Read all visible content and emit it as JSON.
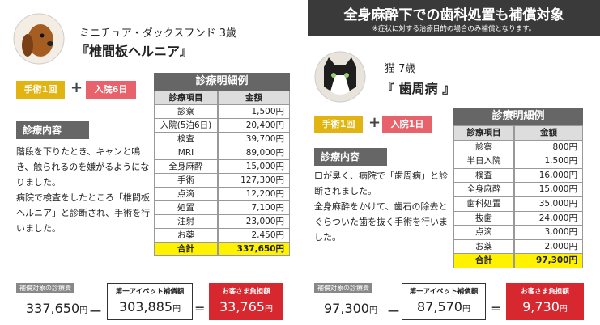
{
  "banner": {
    "title": "全身麻酔下での歯科処置も補償対象",
    "note": "※症状に対する治療目的の場合のみ補償となります。"
  },
  "cases": [
    {
      "name": "ミニチュア・ダックスフンド 3歳",
      "diagnosis": "『椎間板ヘルニア』",
      "badges": [
        "手術1回",
        "入院6日"
      ],
      "plus": "+",
      "section": "診療内容",
      "description": [
        "階段を下りたとき、キャンと鳴き、触られるのを嫌がるようになりました。",
        "病院で検査をしたところ「椎間板ヘルニア」と診断され、手術を行いました。"
      ],
      "table": {
        "title": "診療明細例",
        "headers": [
          "診療項目",
          "金額"
        ],
        "rows": [
          [
            "診察",
            "1,500円"
          ],
          [
            "入院(5泊6日)",
            "20,400円"
          ],
          [
            "検査",
            "39,700円"
          ],
          [
            "MRI",
            "89,000円"
          ],
          [
            "全身麻酔",
            "15,000円"
          ],
          [
            "手術",
            "127,300円"
          ],
          [
            "点滴",
            "12,200円"
          ],
          [
            "処置",
            "7,100円"
          ],
          [
            "注射",
            "23,000円"
          ],
          [
            "お薬",
            "2,450円"
          ]
        ],
        "total": [
          "合計",
          "337,650円"
        ]
      },
      "summary": {
        "items": [
          {
            "label": "補償対象の診療費",
            "amount": "337,650",
            "unit": "円"
          },
          {
            "label": "第一アイペット補償額",
            "amount": "303,885",
            "unit": "円"
          },
          {
            "label": "お客さま負担額",
            "amount": "33,765",
            "unit": "円"
          }
        ],
        "operators": [
          "ー",
          "="
        ]
      }
    },
    {
      "name": "猫 7歳",
      "diagnosis": "『 歯周病 』",
      "badges": [
        "手術1回",
        "入院1日"
      ],
      "plus": "+",
      "section": "診療内容",
      "description": [
        "口が臭く、病院で「歯周病」と診断されました。",
        "全身麻酔をかけて、歯石の除去とぐらついた歯を抜く手術を行いました。"
      ],
      "table": {
        "title": "診療明細例",
        "headers": [
          "診療項目",
          "金額"
        ],
        "rows": [
          [
            "診察",
            "800円"
          ],
          [
            "半日入院",
            "1,500円"
          ],
          [
            "検査",
            "16,000円"
          ],
          [
            "全身麻酔",
            "15,000円"
          ],
          [
            "歯科処置",
            "35,000円"
          ],
          [
            "抜歯",
            "24,000円"
          ],
          [
            "点滴",
            "3,000円"
          ],
          [
            "お薬",
            "2,000円"
          ]
        ],
        "total": [
          "合計",
          "97,300円"
        ]
      },
      "summary": {
        "items": [
          {
            "label": "補償対象の診療費",
            "amount": "97,300",
            "unit": "円"
          },
          {
            "label": "第一アイペット補償額",
            "amount": "87,570",
            "unit": "円"
          },
          {
            "label": "お客さま負担額",
            "amount": "9,730",
            "unit": "円"
          }
        ],
        "operators": [
          "ー",
          "="
        ]
      }
    }
  ]
}
